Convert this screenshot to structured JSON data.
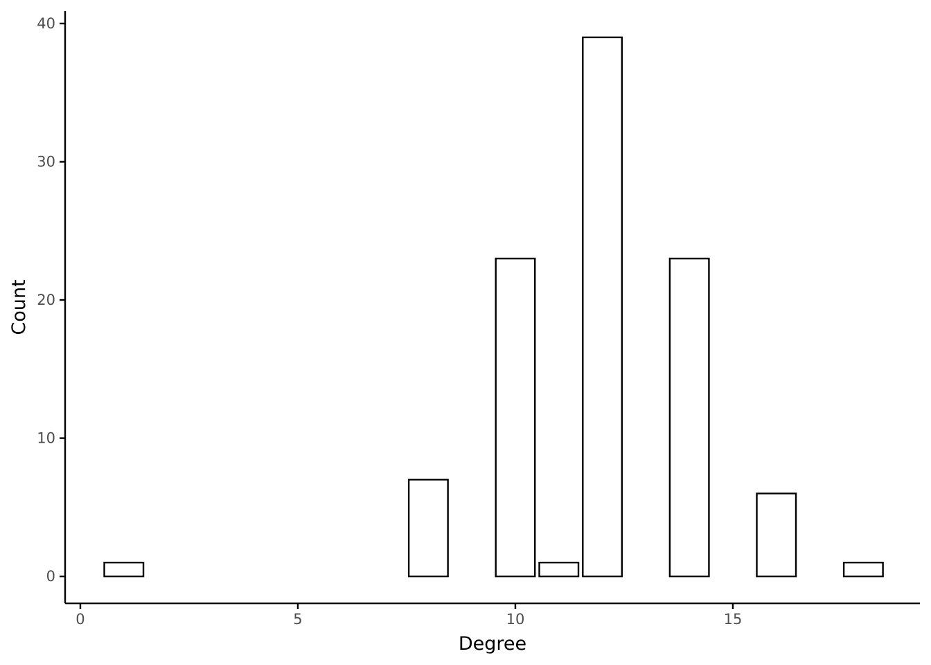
{
  "chart_data": {
    "type": "bar",
    "title": "",
    "xlabel": "Degree",
    "ylabel": "Count",
    "x": [
      1,
      8,
      10,
      11,
      12,
      14,
      16,
      18
    ],
    "values": [
      1,
      7,
      23,
      1,
      39,
      23,
      6,
      1
    ],
    "bar_width": 0.9,
    "xlim": [
      -0.35,
      19.3
    ],
    "ylim": [
      -1.95,
      40.9
    ],
    "x_ticks": [
      0,
      5,
      10,
      15
    ],
    "y_ticks": [
      0,
      10,
      20,
      30,
      40
    ],
    "grid": false,
    "legend": "none",
    "colors": {
      "bar_fill": "#ffffff",
      "bar_stroke": "#000000",
      "tick_text": "#4d4d4d"
    }
  }
}
